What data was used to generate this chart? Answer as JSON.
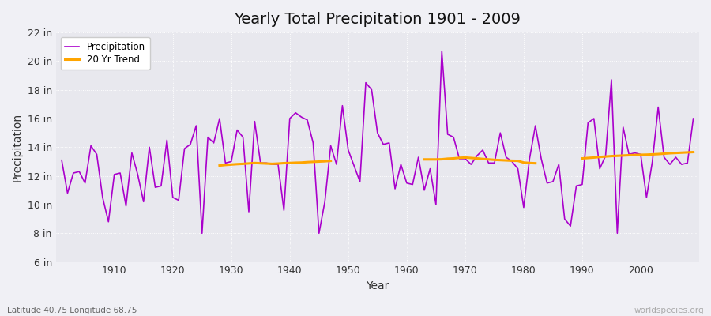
{
  "title": "Yearly Total Precipitation 1901 - 2009",
  "xlabel": "Year",
  "ylabel": "Precipitation",
  "bg_color": "#f0f0f5",
  "plot_bg_color": "#e8e8ee",
  "precip_color": "#aa00cc",
  "trend_color": "#ffa500",
  "ylim": [
    6,
    22
  ],
  "yticks": [
    6,
    8,
    10,
    12,
    14,
    16,
    18,
    20,
    22
  ],
  "ytick_labels": [
    "6 in",
    "8 in",
    "10 in",
    "12 in",
    "14 in",
    "16 in",
    "18 in",
    "20 in",
    "22 in"
  ],
  "years": [
    1901,
    1902,
    1903,
    1904,
    1905,
    1906,
    1907,
    1908,
    1909,
    1910,
    1911,
    1912,
    1913,
    1914,
    1915,
    1916,
    1917,
    1918,
    1919,
    1920,
    1921,
    1922,
    1923,
    1924,
    1925,
    1926,
    1927,
    1928,
    1929,
    1930,
    1931,
    1932,
    1933,
    1934,
    1935,
    1936,
    1937,
    1938,
    1939,
    1940,
    1941,
    1942,
    1943,
    1944,
    1945,
    1946,
    1947,
    1948,
    1949,
    1950,
    1951,
    1952,
    1953,
    1954,
    1955,
    1956,
    1957,
    1958,
    1959,
    1960,
    1961,
    1962,
    1963,
    1964,
    1965,
    1966,
    1967,
    1968,
    1969,
    1970,
    1971,
    1972,
    1973,
    1974,
    1975,
    1976,
    1977,
    1978,
    1979,
    1980,
    1981,
    1982,
    1983,
    1984,
    1985,
    1986,
    1987,
    1988,
    1989,
    1990,
    1991,
    1992,
    1993,
    1994,
    1995,
    1996,
    1997,
    1998,
    1999,
    2000,
    2001,
    2002,
    2003,
    2004,
    2005,
    2006,
    2007,
    2008,
    2009
  ],
  "precip": [
    13.1,
    10.8,
    12.2,
    12.3,
    11.5,
    14.1,
    13.5,
    10.5,
    8.8,
    12.1,
    12.2,
    9.9,
    13.6,
    12.1,
    10.2,
    14.0,
    11.2,
    11.3,
    14.5,
    10.5,
    10.3,
    13.9,
    14.2,
    15.5,
    8.0,
    14.7,
    14.3,
    16.0,
    12.9,
    13.0,
    15.2,
    14.7,
    9.5,
    15.8,
    12.9,
    12.9,
    12.8,
    12.8,
    9.6,
    16.0,
    16.4,
    16.1,
    15.9,
    14.3,
    8.0,
    10.2,
    14.1,
    12.8,
    16.9,
    13.8,
    12.7,
    11.6,
    18.5,
    18.0,
    15.0,
    14.2,
    14.3,
    11.1,
    12.8,
    11.5,
    11.4,
    13.3,
    11.0,
    12.5,
    10.0,
    20.7,
    14.9,
    14.7,
    13.2,
    13.2,
    12.8,
    13.4,
    13.8,
    12.9,
    12.9,
    15.0,
    13.3,
    13.0,
    12.5,
    9.8,
    13.2,
    15.5,
    13.2,
    11.5,
    11.6,
    12.8,
    9.0,
    8.5,
    11.3,
    11.4,
    15.7,
    16.0,
    12.5,
    13.4,
    18.7,
    8.0,
    15.4,
    13.5,
    13.6,
    13.5,
    10.5,
    13.0,
    16.8,
    13.3,
    12.8,
    13.3,
    12.8,
    12.9,
    16.0
  ],
  "trend_segment1_years": [
    1928,
    1929,
    1930,
    1931,
    1932,
    1933,
    1934,
    1935,
    1936,
    1937,
    1938,
    1939,
    1940,
    1941,
    1942,
    1943,
    1944,
    1945,
    1946,
    1947
  ],
  "trend_segment1_vals": [
    12.72,
    12.76,
    12.79,
    12.82,
    12.84,
    12.87,
    12.9,
    12.88,
    12.86,
    12.84,
    12.86,
    12.89,
    12.9,
    12.92,
    12.93,
    12.96,
    12.98,
    13.0,
    13.02,
    13.05
  ],
  "trend_segment2_years": [
    1963,
    1964,
    1965,
    1966,
    1967,
    1968,
    1969,
    1970,
    1971,
    1972,
    1973,
    1974,
    1975,
    1976,
    1977,
    1978,
    1979,
    1980,
    1981,
    1982
  ],
  "trend_segment2_vals": [
    13.15,
    13.15,
    13.15,
    13.16,
    13.2,
    13.22,
    13.26,
    13.28,
    13.25,
    13.22,
    13.18,
    13.15,
    13.12,
    13.1,
    13.08,
    13.06,
    13.05,
    12.93,
    12.9,
    12.88
  ],
  "trend_segment3_years": [
    1990,
    1991,
    1992,
    1993,
    1994,
    1995,
    1996,
    1997,
    1998,
    1999,
    2000,
    2001,
    2002,
    2003,
    2004,
    2005,
    2006,
    2007,
    2008,
    2009
  ],
  "trend_segment3_vals": [
    13.22,
    13.25,
    13.28,
    13.32,
    13.35,
    13.38,
    13.4,
    13.42,
    13.44,
    13.46,
    13.47,
    13.48,
    13.5,
    13.52,
    13.55,
    13.58,
    13.6,
    13.62,
    13.64,
    13.66
  ],
  "footnote_left": "Latitude 40.75 Longitude 68.75",
  "footnote_right": "worldspecies.org",
  "legend_labels": [
    "Precipitation",
    "20 Yr Trend"
  ]
}
